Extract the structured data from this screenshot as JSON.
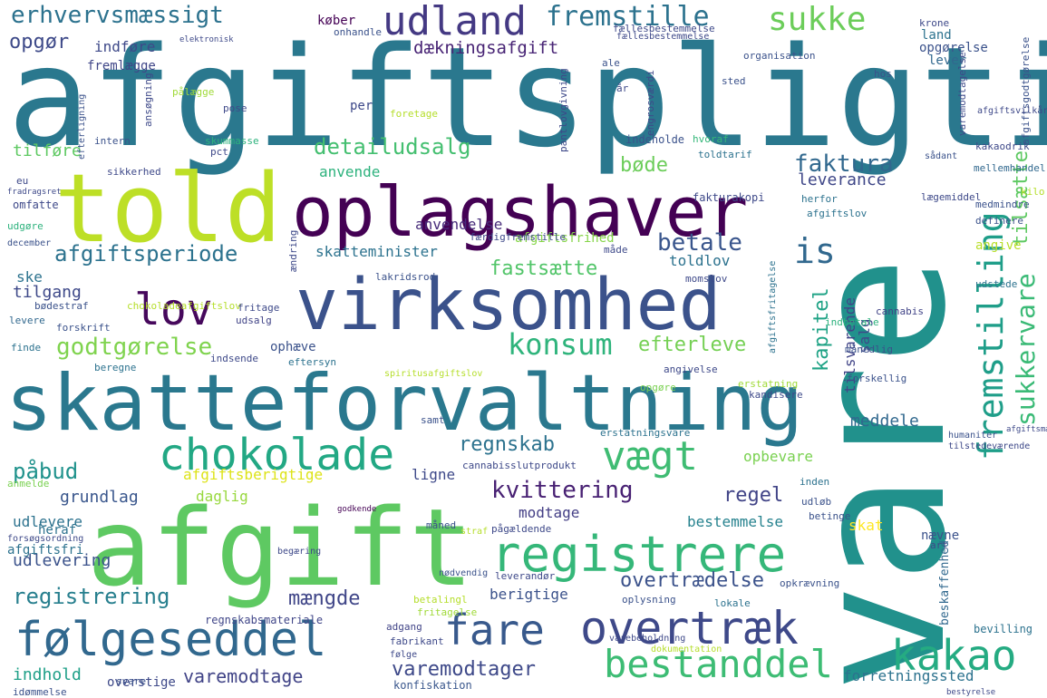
{
  "words": [
    {
      "text": "afgiftspligtig",
      "color": "#2a788e"
    },
    {
      "text": "vare",
      "color": "#21918c"
    },
    {
      "text": "told",
      "color": "#bddf26"
    },
    {
      "text": "oplagshaver",
      "color": "#440154"
    },
    {
      "text": "virksomhed",
      "color": "#3b528b"
    },
    {
      "text": "skatteforvaltning",
      "color": "#2a788e"
    },
    {
      "text": "afgift",
      "color": "#5ec962"
    },
    {
      "text": "registrere",
      "color": "#35b779"
    },
    {
      "text": "chokolade",
      "color": "#22a884"
    },
    {
      "text": "overtræk",
      "color": "#3e4989"
    },
    {
      "text": "følgeseddel",
      "color": "#31688e"
    },
    {
      "text": "fare",
      "color": "#38598c"
    },
    {
      "text": "kakao",
      "color": "#25ab82"
    },
    {
      "text": "bestanddel",
      "color": "#3dbc74"
    },
    {
      "text": "udland",
      "color": "#443983"
    },
    {
      "text": "fremstille",
      "color": "#2c728e"
    },
    {
      "text": "sukke",
      "color": "#6ccd5a"
    },
    {
      "text": "fremstilling",
      "color": "#1f9e89"
    },
    {
      "text": "sukkervare",
      "color": "#3aba76"
    },
    {
      "text": "tilsætte",
      "color": "#5ec962"
    },
    {
      "text": "lov",
      "color": "#46085c"
    },
    {
      "text": "konsum",
      "color": "#2fb47c"
    },
    {
      "text": "is",
      "color": "#31688e"
    },
    {
      "text": "vægt",
      "color": "#3fbc73"
    },
    {
      "text": "erhvervsmæssigt",
      "color": "#2c728e"
    },
    {
      "text": "opgør",
      "color": "#3e4a89"
    },
    {
      "text": "dækningsafgift",
      "color": "#482475"
    },
    {
      "text": "detailudsalg",
      "color": "#44bf70"
    },
    {
      "text": "faktura",
      "color": "#31688e"
    },
    {
      "text": "afgiftsperiode",
      "color": "#2c728e"
    },
    {
      "text": "betale",
      "color": "#39558c"
    },
    {
      "text": "godtgørelse",
      "color": "#7fd34e"
    },
    {
      "text": "fastsætte",
      "color": "#52c569"
    },
    {
      "text": "regnskab",
      "color": "#2c728e"
    },
    {
      "text": "kvittering",
      "color": "#482173"
    },
    {
      "text": "regel",
      "color": "#414487"
    },
    {
      "text": "påbud",
      "color": "#20928c"
    },
    {
      "text": "grundlag",
      "color": "#39568c"
    },
    {
      "text": "udlevering",
      "color": "#3b528b"
    },
    {
      "text": "registrering",
      "color": "#277f8e"
    },
    {
      "text": "mængde",
      "color": "#404688"
    },
    {
      "text": "overtrædelse",
      "color": "#3b528b"
    },
    {
      "text": "varemodtage",
      "color": "#414487"
    },
    {
      "text": "varemodtager",
      "color": "#3e4989"
    },
    {
      "text": "indhold",
      "color": "#1fa088"
    },
    {
      "text": "efterleve",
      "color": "#75d054"
    },
    {
      "text": "kapitel",
      "color": "#20a386"
    },
    {
      "text": "leverance",
      "color": "#3f4788"
    },
    {
      "text": "bøde",
      "color": "#6ccd5a"
    },
    {
      "text": "tilføre",
      "color": "#5ec962"
    },
    {
      "text": "tilgang",
      "color": "#3e4989"
    },
    {
      "text": "anvende",
      "color": "#2db27d"
    },
    {
      "text": "afgiftsberigtige",
      "color": "#dde318"
    },
    {
      "text": "daglig",
      "color": "#98d83e"
    },
    {
      "text": "modtage",
      "color": "#433e85"
    },
    {
      "text": "bestemmelse",
      "color": "#26828e"
    },
    {
      "text": "berigtige",
      "color": "#3b528b"
    },
    {
      "text": "meddele",
      "color": "#31688e"
    },
    {
      "text": "opbevare",
      "color": "#7ad151"
    },
    {
      "text": "anvendelse",
      "color": "#472c7a"
    },
    {
      "text": "skatteminister",
      "color": "#2c728e"
    },
    {
      "text": "afgiftsfrihed",
      "color": "#86d549"
    },
    {
      "text": "toldlov",
      "color": "#2c728e"
    },
    {
      "text": "ske",
      "color": "#2c728e"
    },
    {
      "text": "salg",
      "color": "#3e4989"
    },
    {
      "text": "tilsvarende",
      "color": "#414487"
    },
    {
      "text": "skat",
      "color": "#fde725"
    },
    {
      "text": "nævne",
      "color": "#3b528b"
    },
    {
      "text": "ligne",
      "color": "#3e4989"
    },
    {
      "text": "heraf",
      "color": "#2c728e"
    },
    {
      "text": "afgiftsfri",
      "color": "#2c728e"
    },
    {
      "text": "udlevere",
      "color": "#2c728e"
    },
    {
      "text": "fremlægge",
      "color": "#404688"
    },
    {
      "text": "indføre",
      "color": "#3e4989"
    },
    {
      "text": "køber",
      "color": "#440154"
    },
    {
      "text": "land",
      "color": "#2c728e"
    },
    {
      "text": "lever",
      "color": "#31688e"
    },
    {
      "text": "opgørelse",
      "color": "#3b528b"
    },
    {
      "text": "angive",
      "color": "#b8de29"
    },
    {
      "text": "ophæve",
      "color": "#3b528b"
    },
    {
      "text": "forretningssted",
      "color": "#2c728e"
    },
    {
      "text": "overstige",
      "color": "#3e4989"
    },
    {
      "text": "konfiskation",
      "color": "#39568c"
    },
    {
      "text": "regnskabsmateriale",
      "color": "#404688"
    },
    {
      "text": "beskaffenhed",
      "color": "#31688e"
    },
    {
      "text": "bevilling",
      "color": "#2c728e"
    },
    {
      "text": "cannabis",
      "color": "#414487"
    },
    {
      "text": "mellemhandel",
      "color": "#31688e"
    },
    {
      "text": "toldtarif",
      "color": "#2c728e"
    },
    {
      "text": "fakturakopi",
      "color": "#3e4989"
    },
    {
      "text": "hvoraf",
      "color": "#35b779"
    },
    {
      "text": "indeholde",
      "color": "#3b528b"
    },
    {
      "text": "pantlovgivning",
      "color": "#3e4989"
    },
    {
      "text": "per",
      "color": "#3e4989"
    },
    {
      "text": "pålægge",
      "color": "#a0da39"
    },
    {
      "text": "efterligning",
      "color": "#3b528b"
    },
    {
      "text": "sikkerhed",
      "color": "#3e4989"
    },
    {
      "text": "omfatte",
      "color": "#3e4989"
    },
    {
      "text": "udgøre",
      "color": "#2db27d"
    },
    {
      "text": "bødestraf",
      "color": "#3b528b"
    },
    {
      "text": "chokoladeafgiftslov",
      "color": "#b5de2b"
    },
    {
      "text": "fritage",
      "color": "#3e4989"
    },
    {
      "text": "udsalg",
      "color": "#414487"
    },
    {
      "text": "levere",
      "color": "#31688e"
    },
    {
      "text": "forskrift",
      "color": "#3b528b"
    },
    {
      "text": "finde",
      "color": "#2c728e"
    },
    {
      "text": "indsende",
      "color": "#3e4989"
    },
    {
      "text": "eftersyn",
      "color": "#2c728e"
    },
    {
      "text": "beregne",
      "color": "#2c728e"
    },
    {
      "text": "svare",
      "color": "#3b528b"
    },
    {
      "text": "anmelde",
      "color": "#7ad151"
    },
    {
      "text": "måned",
      "color": "#3b528b"
    },
    {
      "text": "betalingl",
      "color": "#b5de2b"
    },
    {
      "text": "fritagelse",
      "color": "#a0da39"
    },
    {
      "text": "adgang",
      "color": "#414487"
    },
    {
      "text": "fabrikant",
      "color": "#3e4989"
    },
    {
      "text": "oplysning",
      "color": "#3b528b"
    },
    {
      "text": "lokale",
      "color": "#2c728e"
    },
    {
      "text": "opkrævning",
      "color": "#3b528b"
    },
    {
      "text": "art",
      "color": "#3e4989"
    },
    {
      "text": "erstatningsvare",
      "color": "#2c728e"
    },
    {
      "text": "cannabisslutprodukt",
      "color": "#3e4989"
    },
    {
      "text": "samt",
      "color": "#3b528b"
    },
    {
      "text": "inden",
      "color": "#2c728e"
    },
    {
      "text": "udløb",
      "color": "#3b528b"
    },
    {
      "text": "betinge",
      "color": "#3b528b"
    },
    {
      "text": "pågældende",
      "color": "#3e4989"
    },
    {
      "text": "leverandør",
      "color": "#3e4989"
    },
    {
      "text": "erstatning",
      "color": "#a0da39"
    },
    {
      "text": "kandisere",
      "color": "#3e4989"
    },
    {
      "text": "forskellig",
      "color": "#3b528b"
    },
    {
      "text": "opgøre",
      "color": "#7ad151"
    },
    {
      "text": "angivelse",
      "color": "#3e4989"
    },
    {
      "text": "månedlig",
      "color": "#3b528b"
    },
    {
      "text": "indbetale",
      "color": "#2db27d"
    },
    {
      "text": "udstede",
      "color": "#2c728e"
    },
    {
      "text": "momslov",
      "color": "#3e4989"
    },
    {
      "text": "lakridsrod",
      "color": "#3b528b"
    },
    {
      "text": "måde",
      "color": "#3e4989"
    },
    {
      "text": "færdigfremstille",
      "color": "#3e4989"
    },
    {
      "text": "definere",
      "color": "#3b528b"
    },
    {
      "text": "lægemiddel",
      "color": "#3e4989"
    },
    {
      "text": "herfor",
      "color": "#2c728e"
    },
    {
      "text": "afgiftslov",
      "color": "#2c728e"
    },
    {
      "text": "kilo",
      "color": "#b5de2b"
    },
    {
      "text": "medmindre",
      "color": "#3b528b"
    },
    {
      "text": "kakaodrik",
      "color": "#3e4989"
    },
    {
      "text": "organisation",
      "color": "#3b528b"
    },
    {
      "text": "hos",
      "color": "#3b528b"
    },
    {
      "text": "sted",
      "color": "#3b528b"
    },
    {
      "text": "ale",
      "color": "#3b528b"
    },
    {
      "text": "år",
      "color": "#3e4989"
    },
    {
      "text": "krone",
      "color": "#3e4989"
    },
    {
      "text": "fællesbestemmelse",
      "color": "#3e4989"
    },
    {
      "text": "onhandle",
      "color": "#3b528b"
    },
    {
      "text": "foretage",
      "color": "#b5de2b"
    },
    {
      "text": "pose",
      "color": "#3e4989"
    },
    {
      "text": "intern",
      "color": "#3b528b"
    },
    {
      "text": "skummasse",
      "color": "#2db27d"
    },
    {
      "text": "pct",
      "color": "#3e4989"
    },
    {
      "text": "ansøgning",
      "color": "#3e4989"
    },
    {
      "text": "eu",
      "color": "#3e4989"
    },
    {
      "text": "december",
      "color": "#3b528b"
    },
    {
      "text": "fradragsret",
      "color": "#3e4989"
    },
    {
      "text": "ændring",
      "color": "#3e4989"
    },
    {
      "text": "spiritusafgiftslov",
      "color": "#b5de2b"
    },
    {
      "text": "humaniter",
      "color": "#3b528b"
    },
    {
      "text": "tilstedeværende",
      "color": "#3e4989"
    },
    {
      "text": "følge",
      "color": "#3e4989"
    },
    {
      "text": "dokumentation",
      "color": "#b5de2b"
    },
    {
      "text": "varebeholdning",
      "color": "#3e4989"
    },
    {
      "text": "nødvendig",
      "color": "#3b528b"
    },
    {
      "text": "straf",
      "color": "#b5de2b"
    },
    {
      "text": "begæring",
      "color": "#3e4989"
    },
    {
      "text": "forsøgsordning",
      "color": "#3e4989"
    },
    {
      "text": "godkende",
      "color": "#440154"
    },
    {
      "text": "idømmelse",
      "color": "#3b528b"
    },
    {
      "text": "engrosværdi",
      "color": "#3e4989"
    },
    {
      "text": "afgiftsgodtgørelse",
      "color": "#3b528b"
    },
    {
      "text": "varemodtagelse",
      "color": "#3e4989"
    },
    {
      "text": "elektronisk",
      "color": "#3e4989"
    },
    {
      "text": "afgiftsvilkår",
      "color": "#3e4989"
    },
    {
      "text": "afgiftsfritagelse",
      "color": "#2c728e"
    },
    {
      "text": "sådant",
      "color": "#3b528b"
    },
    {
      "text": "afgiftsmæssig",
      "color": "#3e4989"
    },
    {
      "text": "bestyrelse",
      "color": "#3e4989"
    },
    {
      "text": "fællesbestemmelse",
      "color": "#3e4989"
    }
  ]
}
